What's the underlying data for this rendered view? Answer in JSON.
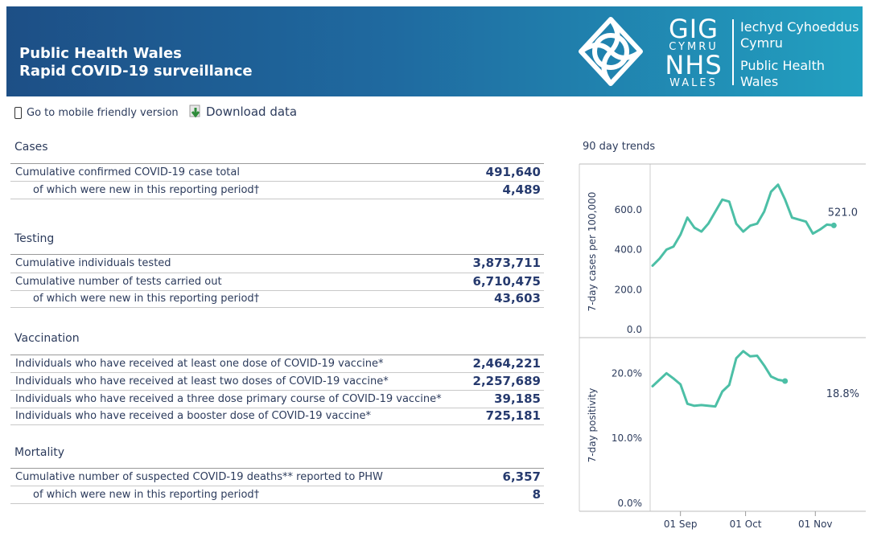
{
  "header": {
    "title_line1": "Public Health Wales",
    "title_line2": "Rapid COVID-19 surveillance",
    "logo_gig": "GIG",
    "logo_cymru": "CYMRU",
    "logo_nhs": "NHS",
    "logo_wales": "WALES",
    "brand_line1": "Iechyd Cyhoeddus",
    "brand_line2": "Cymru",
    "brand_line3": "Public Health",
    "brand_line4": "Wales",
    "gradient": [
      "#1d4f86",
      "#22a0c0"
    ]
  },
  "links": {
    "mobile": "Go to mobile friendly version",
    "download": "Download data"
  },
  "sections": {
    "cases": {
      "title": "Cases",
      "rows": [
        {
          "label": "Cumulative confirmed COVID-19 case total",
          "value": "491,640"
        },
        {
          "label": "of which were new in this reporting period†",
          "value": "4,489"
        }
      ]
    },
    "testing": {
      "title": "Testing",
      "rows": [
        {
          "label": "Cumulative individuals tested",
          "value": "3,873,711"
        },
        {
          "label": "Cumulative number of tests carried out",
          "value": "6,710,475"
        },
        {
          "label": "of which were new in this reporting period†",
          "value": "43,603"
        }
      ]
    },
    "vaccination": {
      "title": "Vaccination",
      "rows": [
        {
          "label": "Individuals who have received at least one dose of COVID-19 vaccine*",
          "value": "2,464,221"
        },
        {
          "label": "Individuals who have received at least two doses of COVID-19 vaccine*",
          "value": "2,257,689"
        },
        {
          "label": "Individuals who have received a three dose primary course of COVID-19 vaccine*",
          "value": "39,185"
        },
        {
          "label": "Individuals who have received a booster dose of COVID-19 vaccine*",
          "value": "725,181"
        }
      ]
    },
    "mortality": {
      "title": "Mortality",
      "rows": [
        {
          "label": "Cumulative number of suspected COVID-19 deaths** reported to PHW",
          "value": "6,357"
        },
        {
          "label": "of which were new in this reporting period†",
          "value": "8"
        }
      ]
    }
  },
  "trends": {
    "title": "90 day trends",
    "line_color": "#4cbfa6",
    "x_ticks": [
      "01 Sep",
      "01 Oct",
      "01 Nov"
    ]
  },
  "chart_data": [
    {
      "type": "line",
      "ylabel": "7-day cases per 100,000",
      "yticks": [
        "0.0",
        "200.0",
        "400.0",
        "600.0"
      ],
      "ylim": [
        0,
        780
      ],
      "last_label": "521.0",
      "x": [
        0,
        3,
        6,
        9,
        12,
        15,
        18,
        21,
        24,
        27,
        30,
        33,
        36,
        39,
        42,
        45,
        48,
        51,
        54,
        57,
        60,
        63,
        66,
        69,
        72,
        75,
        78,
        81,
        84,
        87,
        90
      ],
      "values": [
        320,
        355,
        400,
        415,
        475,
        560,
        510,
        490,
        530,
        590,
        650,
        640,
        530,
        490,
        520,
        530,
        590,
        690,
        725,
        650,
        560,
        550,
        540,
        480,
        500,
        525,
        521,
        null,
        null,
        null,
        null
      ]
    },
    {
      "type": "line",
      "ylabel": "7-day positivity",
      "yticks": [
        "0.0%",
        "10.0%",
        "20.0%"
      ],
      "ylim": [
        0,
        24
      ],
      "last_label": "18.8%",
      "x": [
        0,
        3,
        6,
        9,
        12,
        15,
        18,
        21,
        24,
        27,
        30,
        33,
        36,
        39,
        42,
        45,
        48,
        51,
        54,
        57,
        60,
        63,
        66,
        69,
        72,
        75,
        78,
        81,
        84,
        87,
        90
      ],
      "values": [
        18.0,
        19.0,
        20.0,
        19.2,
        18.3,
        15.3,
        15.0,
        15.1,
        15.0,
        14.9,
        17.2,
        18.2,
        22.3,
        23.4,
        22.6,
        22.7,
        21.2,
        19.5,
        19.0,
        18.8,
        null,
        null,
        null,
        null,
        null,
        null,
        null,
        null,
        null,
        null,
        null
      ]
    }
  ]
}
